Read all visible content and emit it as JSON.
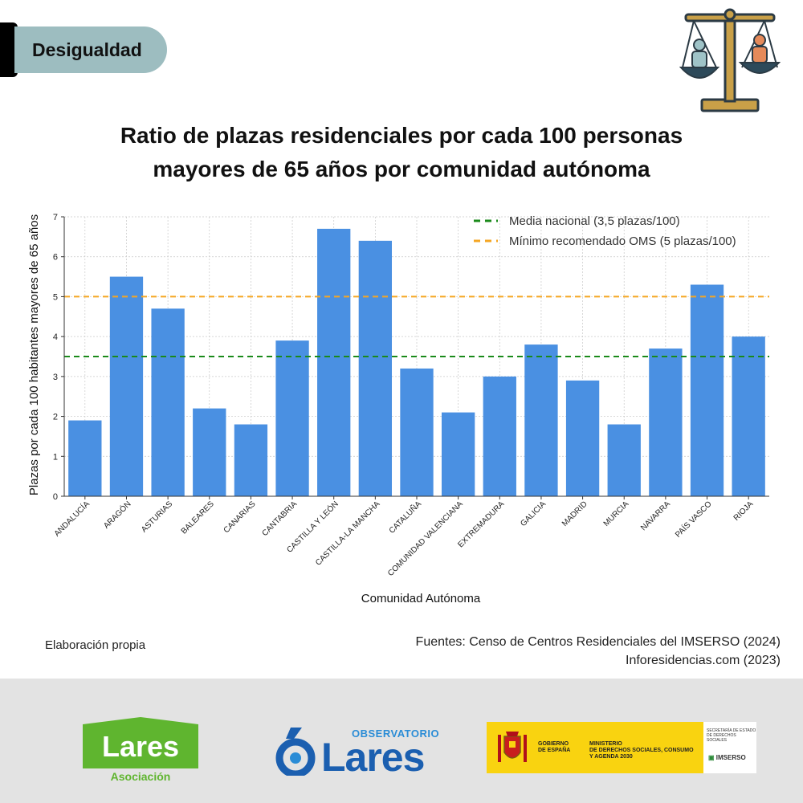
{
  "tag": {
    "label": "Desigualdad"
  },
  "title": {
    "line1": "Ratio de plazas residenciales por cada 100 personas",
    "line2": "mayores de 65 años por comunidad autónoma"
  },
  "colors": {
    "bar": "#4a90e2",
    "media_line": "#1a8a1a",
    "oms_line": "#f5a623",
    "tag_bg": "#9dbdc0"
  },
  "icons": {
    "header": "justice-scale-icon"
  },
  "chart_data": {
    "type": "bar",
    "categories": [
      "ANDALUCÍA",
      "ARAGÓN",
      "ASTURIAS",
      "BALEARES",
      "CANARIAS",
      "CANTABRIA",
      "CASTILLA Y LEÓN",
      "CASTILLA-LA MANCHA",
      "CATALUÑA",
      "COMUNIDAD VALENCIANA",
      "EXTREMADURA",
      "GALICIA",
      "MADRID",
      "MURCIA",
      "NAVARRA",
      "PAÍS VASCO",
      "RIOJA"
    ],
    "values": [
      1.9,
      5.5,
      4.7,
      2.2,
      1.8,
      3.9,
      6.7,
      6.4,
      3.2,
      2.1,
      3.0,
      3.8,
      2.9,
      1.8,
      3.7,
      5.3,
      4.0
    ],
    "xlabel": "Comunidad Autónoma",
    "ylabel": "Plazas por cada 100 habitantes mayores de 65 años",
    "ylim": [
      0,
      7
    ],
    "yticks": [
      0,
      1,
      2,
      3,
      4,
      5,
      6,
      7
    ],
    "grid": true,
    "legend_position": "top-right",
    "reference_lines": [
      {
        "label": "Media nacional (3,5 plazas/100)",
        "value": 3.5,
        "style": "dashed",
        "color": "#1a8a1a"
      },
      {
        "label": "Mínimo recomendado OMS (5 plazas/100)",
        "value": 5,
        "style": "dashed",
        "color": "#f5a623"
      }
    ]
  },
  "notes": {
    "left": "Elaboración propia",
    "right_line1": "Fuentes: Censo de Centros Residenciales del IMSERSO (2024)",
    "right_line2": "Inforesidencias.com  (2023)"
  },
  "footer": {
    "lares_name": "Lares",
    "lares_sub": "Asociación",
    "observatorio_top": "OBSERVATORIO",
    "observatorio_main": "Lares",
    "gov_line1": "GOBIERNO",
    "gov_line2": "DE ESPAÑA",
    "ministry_line1": "MINISTERIO",
    "ministry_line2": "DE DERECHOS SOCIALES, CONSUMO",
    "ministry_line3": "Y AGENDA 2030",
    "secretaria_line1": "SECRETARÍA DE ESTADO",
    "secretaria_line2": "DE DERECHOS SOCIALES",
    "imserso": "IMSERSO"
  }
}
